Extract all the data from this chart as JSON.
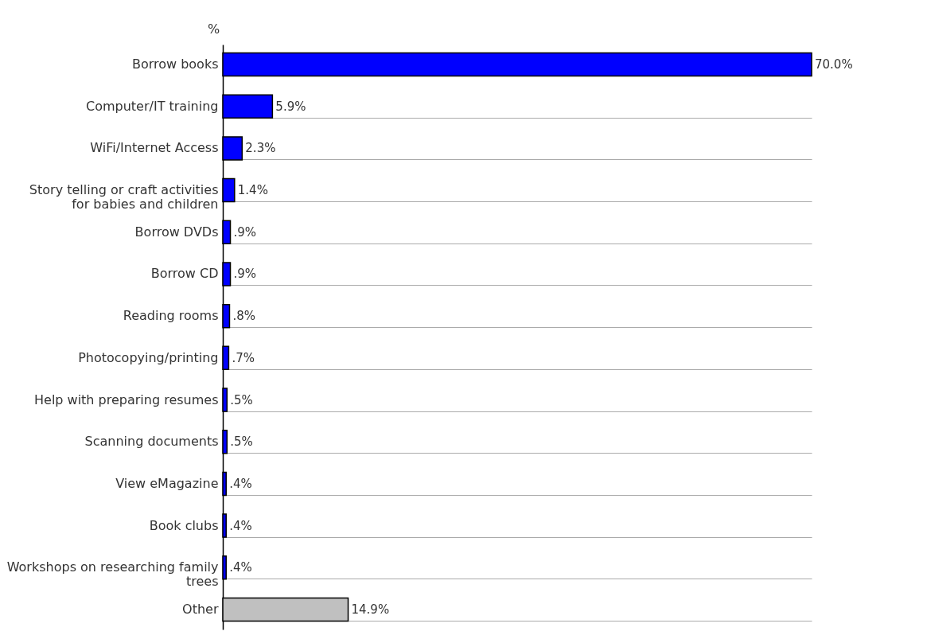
{
  "chart_data": {
    "type": "bar",
    "orientation": "horizontal",
    "xlabel": "%",
    "categories": [
      "Borrow books",
      "Computer/IT training",
      "WiFi/Internet Access",
      "Story telling or craft activities for babies and children",
      "Borrow DVDs",
      "Borrow CD",
      "Reading rooms",
      "Photocopying/printing",
      "Help with preparing resumes",
      "Scanning documents",
      "View eMagazine",
      "Book clubs",
      "Workshops on researching family trees",
      "Other"
    ],
    "values": [
      70.0,
      5.9,
      2.3,
      1.4,
      0.9,
      0.9,
      0.8,
      0.7,
      0.5,
      0.5,
      0.4,
      0.4,
      0.4,
      14.9
    ],
    "colors": [
      "#0000ff",
      "#0000ff",
      "#0000ff",
      "#0000ff",
      "#0000ff",
      "#0000ff",
      "#0000ff",
      "#0000ff",
      "#0000ff",
      "#0000ff",
      "#0000ff",
      "#0000ff",
      "#0000ff",
      "#c0c0c0"
    ],
    "value_labels": [
      "70.0%",
      "5.9%",
      "2.3%",
      "1.4%",
      ".9%",
      ".9%",
      ".8%",
      ".7%",
      ".5%",
      ".5%",
      ".4%",
      ".4%",
      ".4%",
      "14.9%"
    ],
    "grid": "y"
  }
}
